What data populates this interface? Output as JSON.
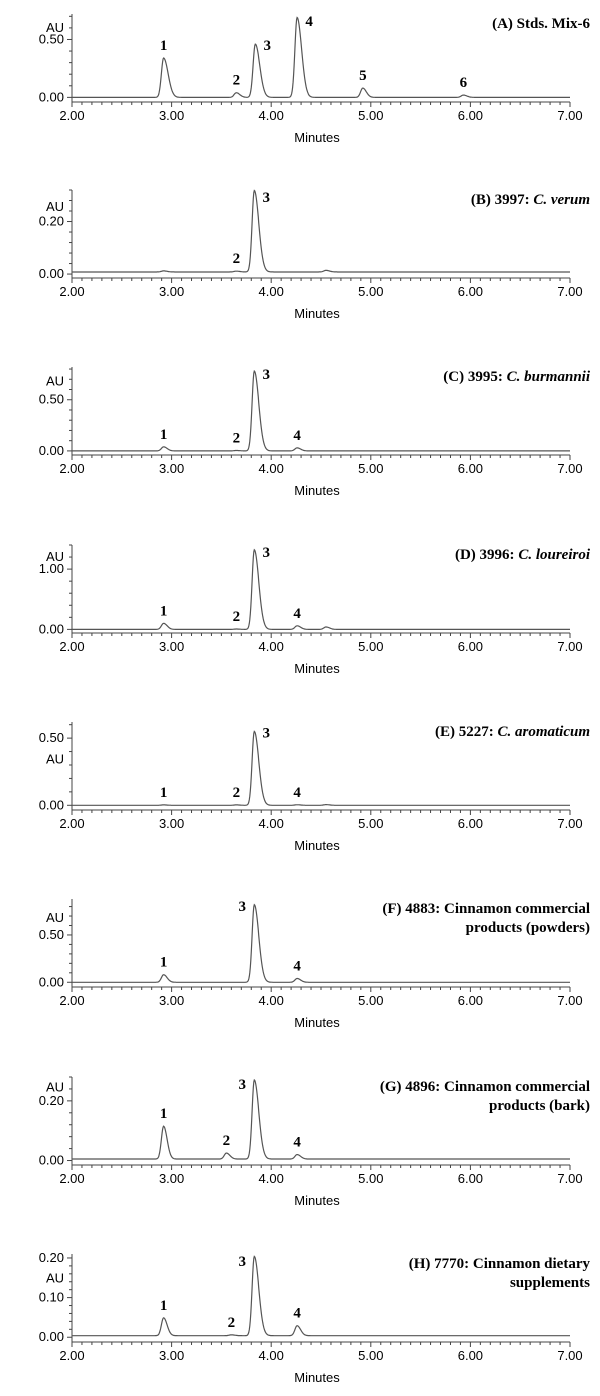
{
  "chart_data": [
    {
      "type": "line",
      "title_parts": [
        {
          "text": "(A) Stds. Mix-6",
          "italic": false
        }
      ],
      "ylabel": "AU",
      "xlabel": "Minutes",
      "xlim": [
        2.0,
        7.0
      ],
      "xticks": [
        "2.00",
        "3.00",
        "4.00",
        "5.00",
        "6.00",
        "7.00"
      ],
      "ylim": [
        -0.04,
        0.72
      ],
      "yticks": [
        {
          "v": 0.0,
          "label": "0.00"
        },
        {
          "v": 0.5,
          "label": "0.50"
        }
      ],
      "au_label_value": 0.6,
      "baseline": 0.0,
      "peaks": [
        {
          "label": "1",
          "rt": 2.92,
          "height": 0.34
        },
        {
          "label": "2",
          "rt": 3.65,
          "height": 0.04
        },
        {
          "label": "3",
          "rt": 3.84,
          "height": 0.46
        },
        {
          "label": "4",
          "rt": 4.26,
          "height": 0.69
        },
        {
          "label": "5",
          "rt": 4.92,
          "height": 0.08
        },
        {
          "label": "6",
          "rt": 5.93,
          "height": 0.02
        }
      ]
    },
    {
      "type": "line",
      "title_parts": [
        {
          "text": "(B) 3997: ",
          "italic": false
        },
        {
          "text": "C. verum",
          "italic": true
        }
      ],
      "ylabel": "AU",
      "xlabel": "Minutes",
      "xlim": [
        2.0,
        7.0
      ],
      "xticks": [
        "2.00",
        "3.00",
        "4.00",
        "5.00",
        "6.00",
        "7.00"
      ],
      "ylim": [
        -0.015,
        0.32
      ],
      "yticks": [
        {
          "v": 0.0,
          "label": "0.00"
        },
        {
          "v": 0.2,
          "label": "0.20"
        }
      ],
      "au_label_value": 0.255,
      "baseline": 0.008,
      "peaks": [
        {
          "label": null,
          "rt": 2.92,
          "height": 0.004
        },
        {
          "label": "2",
          "rt": 3.65,
          "height": 0.003
        },
        {
          "label": "3",
          "rt": 3.83,
          "height": 0.31
        },
        {
          "label": null,
          "rt": 4.55,
          "height": 0.006
        }
      ]
    },
    {
      "type": "line",
      "title_parts": [
        {
          "text": "(C) 3995: ",
          "italic": false
        },
        {
          "text": "C. burmannii",
          "italic": true
        }
      ],
      "ylabel": "AU",
      "xlabel": "Minutes",
      "xlim": [
        2.0,
        7.0
      ],
      "xticks": [
        "2.00",
        "3.00",
        "4.00",
        "5.00",
        "6.00",
        "7.00"
      ],
      "ylim": [
        -0.04,
        0.82
      ],
      "yticks": [
        {
          "v": 0.0,
          "label": "0.00"
        },
        {
          "v": 0.5,
          "label": "0.50"
        }
      ],
      "au_label_value": 0.68,
      "baseline": 0.0,
      "peaks": [
        {
          "label": "1",
          "rt": 2.92,
          "height": 0.04
        },
        {
          "label": "2",
          "rt": 3.65,
          "height": 0.004
        },
        {
          "label": "3",
          "rt": 3.83,
          "height": 0.78
        },
        {
          "label": "4",
          "rt": 4.26,
          "height": 0.03
        }
      ]
    },
    {
      "type": "line",
      "title_parts": [
        {
          "text": "(D) 3996: ",
          "italic": false
        },
        {
          "text": "C. loureiroi",
          "italic": true
        }
      ],
      "ylabel": "AU",
      "xlabel": "Minutes",
      "xlim": [
        2.0,
        7.0
      ],
      "xticks": [
        "2.00",
        "3.00",
        "4.00",
        "5.00",
        "6.00",
        "7.00"
      ],
      "ylim": [
        -0.06,
        1.4
      ],
      "yticks": [
        {
          "v": 0.0,
          "label": "0.00"
        },
        {
          "v": 1.0,
          "label": "1.00"
        }
      ],
      "au_label_value": 1.2,
      "baseline": 0.0,
      "peaks": [
        {
          "label": "1",
          "rt": 2.92,
          "height": 0.1
        },
        {
          "label": "2",
          "rt": 3.65,
          "height": 0.006
        },
        {
          "label": "3",
          "rt": 3.83,
          "height": 1.32
        },
        {
          "label": "4",
          "rt": 4.26,
          "height": 0.06
        },
        {
          "label": null,
          "rt": 4.55,
          "height": 0.04
        }
      ]
    },
    {
      "type": "line",
      "title_parts": [
        {
          "text": "(E) 5227: ",
          "italic": false
        },
        {
          "text": "C. aromaticum",
          "italic": true
        }
      ],
      "ylabel": "AU",
      "xlabel": "Minutes",
      "xlim": [
        2.0,
        7.0
      ],
      "xticks": [
        "2.00",
        "3.00",
        "4.00",
        "5.00",
        "6.00",
        "7.00"
      ],
      "ylim": [
        -0.035,
        0.62
      ],
      "yticks": [
        {
          "v": 0.0,
          "label": "0.00"
        },
        {
          "v": 0.5,
          "label": "0.50"
        }
      ],
      "au_label_value": 0.34,
      "baseline": 0.0,
      "peaks": [
        {
          "label": "1",
          "rt": 2.92,
          "height": 0.003
        },
        {
          "label": "2",
          "rt": 3.65,
          "height": 0.003
        },
        {
          "label": "3",
          "rt": 3.83,
          "height": 0.55
        },
        {
          "label": "4",
          "rt": 4.26,
          "height": 0.004
        },
        {
          "label": null,
          "rt": 4.55,
          "height": 0.005
        }
      ]
    },
    {
      "type": "line",
      "title_parts": [
        {
          "text": "(F) 4883: Cinnamon commercial",
          "italic": false
        },
        {
          "text": "products (powders)",
          "italic": false,
          "line2": true
        }
      ],
      "ylabel": "AU",
      "xlabel": "Minutes",
      "xlim": [
        2.0,
        7.0
      ],
      "xticks": [
        "2.00",
        "3.00",
        "4.00",
        "5.00",
        "6.00",
        "7.00"
      ],
      "ylim": [
        -0.05,
        0.88
      ],
      "yticks": [
        {
          "v": 0.0,
          "label": "0.00"
        },
        {
          "v": 0.5,
          "label": "0.50"
        }
      ],
      "au_label_value": 0.68,
      "baseline": 0.0,
      "peaks": [
        {
          "label": "1",
          "rt": 2.92,
          "height": 0.08
        },
        {
          "label": "3",
          "rt": 3.83,
          "height": 0.82
        },
        {
          "label": "4",
          "rt": 4.26,
          "height": 0.04
        }
      ]
    },
    {
      "type": "line",
      "title_parts": [
        {
          "text": "(G) 4896: Cinnamon commercial",
          "italic": false
        },
        {
          "text": "products (bark)",
          "italic": false,
          "line2": true
        }
      ],
      "ylabel": "AU",
      "xlabel": "Minutes",
      "xlim": [
        2.0,
        7.0
      ],
      "xticks": [
        "2.00",
        "3.00",
        "4.00",
        "5.00",
        "6.00",
        "7.00"
      ],
      "ylim": [
        -0.015,
        0.28
      ],
      "yticks": [
        {
          "v": 0.0,
          "label": "0.00"
        },
        {
          "v": 0.2,
          "label": "0.20"
        }
      ],
      "au_label_value": 0.245,
      "baseline": 0.005,
      "peaks": [
        {
          "label": "1",
          "rt": 2.92,
          "height": 0.11
        },
        {
          "label": "2",
          "rt": 3.55,
          "height": 0.02
        },
        {
          "label": "3",
          "rt": 3.83,
          "height": 0.265
        },
        {
          "label": "4",
          "rt": 4.26,
          "height": 0.015
        }
      ]
    },
    {
      "type": "line",
      "title_parts": [
        {
          "text": "(H) 7770: Cinnamon dietary",
          "italic": false
        },
        {
          "text": "supplements",
          "italic": false,
          "line2": true
        }
      ],
      "ylabel": "AU",
      "xlabel": "Minutes",
      "xlim": [
        2.0,
        7.0
      ],
      "xticks": [
        "2.00",
        "3.00",
        "4.00",
        "5.00",
        "6.00",
        "7.00"
      ],
      "ylim": [
        -0.012,
        0.21
      ],
      "yticks": [
        {
          "v": 0.0,
          "label": "0.00"
        },
        {
          "v": 0.1,
          "label": "0.10"
        },
        {
          "v": 0.2,
          "label": "0.20"
        }
      ],
      "au_label_value": 0.148,
      "baseline": 0.004,
      "peaks": [
        {
          "label": "1",
          "rt": 2.92,
          "height": 0.045
        },
        {
          "label": "2",
          "rt": 3.6,
          "height": 0.002
        },
        {
          "label": "3",
          "rt": 3.83,
          "height": 0.2
        },
        {
          "label": "4",
          "rt": 4.26,
          "height": 0.025
        }
      ]
    }
  ]
}
